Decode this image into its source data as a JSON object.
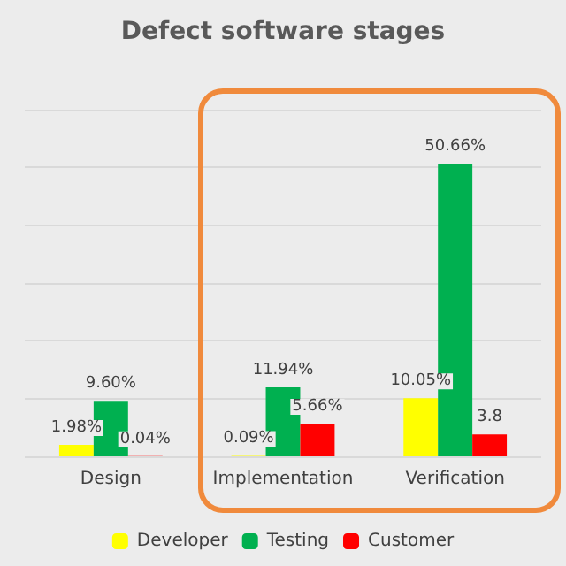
{
  "chart_data": {
    "type": "bar",
    "title": "Defect software stages",
    "categories": [
      "Design",
      "Implementation",
      "Verification"
    ],
    "series": [
      {
        "name": "Developer",
        "color": "#ffff00",
        "values": [
          1.98,
          0.09,
          10.05
        ],
        "value_labels": [
          "1.98%",
          "0.09%",
          "10.05%"
        ]
      },
      {
        "name": "Testing",
        "color": "#00b050",
        "values": [
          9.6,
          11.94,
          50.66
        ],
        "value_labels": [
          "9.60%",
          "11.94%",
          "50.66%"
        ]
      },
      {
        "name": "Customer",
        "color": "#ff0000",
        "values": [
          0.04,
          5.66,
          3.8
        ],
        "value_labels": [
          "0.04%",
          "5.66%",
          "3.8"
        ]
      }
    ],
    "ylim": [
      0,
      60
    ],
    "yticks": [
      {
        "value": 0,
        "label": null
      },
      {
        "value": 10,
        "label": null
      },
      {
        "value": 20,
        "label": null
      },
      {
        "value": 30,
        "label": null
      },
      {
        "value": 40,
        "label": null
      },
      {
        "value": 50,
        "label": null
      },
      {
        "value": 60,
        "label": null
      }
    ],
    "grid": "y",
    "legend": "bottom"
  }
}
